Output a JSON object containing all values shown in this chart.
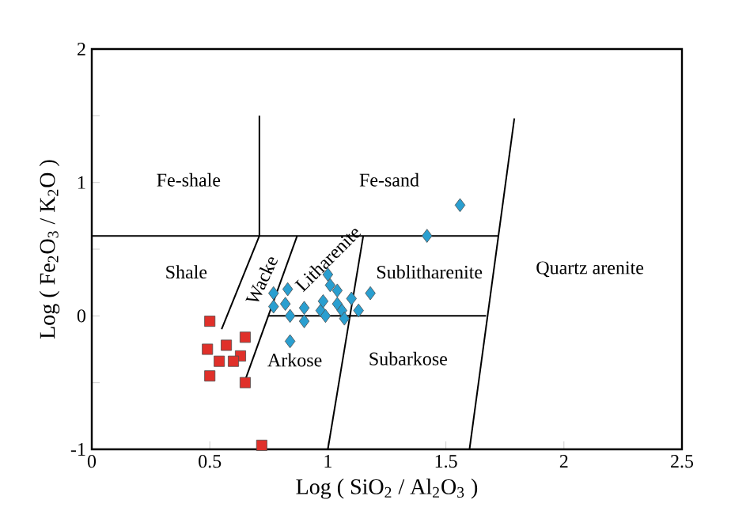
{
  "chart_data": {
    "type": "scatter",
    "xlabel": "Log ( SiO$_{2}$ / Al$_{2}$O$_{3}$ )",
    "ylabel": "Log ( Fe$_{2}$O$_{3}$ / K$_{2}$O )",
    "xlim": [
      0,
      2.5
    ],
    "ylim": [
      -1,
      2
    ],
    "xticks": [
      0,
      0.5,
      1,
      1.5,
      2,
      2.5
    ],
    "yticks": [
      -1,
      {
        "value": -0.5,
        "label": null
      },
      0,
      {
        "value": 0.5,
        "label": null
      },
      1,
      {
        "value": 1.5,
        "label": null
      },
      2
    ],
    "grid": false,
    "series": [
      {
        "type": "line",
        "color": "#000000",
        "x": [
          0.71,
          0.71,
          0.55
        ],
        "values": [
          1.5,
          0.6,
          -0.1
        ]
      },
      {
        "type": "line",
        "color": "#000000",
        "x": [
          0,
          1.72
        ],
        "values": [
          0.6,
          0.6
        ]
      },
      {
        "type": "line",
        "color": "#000000",
        "x": [
          0.87,
          0.65
        ],
        "values": [
          0.6,
          -0.48
        ]
      },
      {
        "type": "line",
        "color": "#000000",
        "x": [
          1.15,
          1.0
        ],
        "values": [
          0.6,
          -1
        ]
      },
      {
        "type": "line",
        "color": "#000000",
        "x": [
          0.75,
          1.67
        ],
        "values": [
          0,
          0
        ]
      },
      {
        "type": "line",
        "color": "#000000",
        "x": [
          1.79,
          1.6
        ],
        "values": [
          1.48,
          -1
        ]
      },
      {
        "marker": "square",
        "color": "#e0302a",
        "x": [
          0.5,
          0.49,
          0.57,
          0.65,
          0.63,
          0.54,
          0.6,
          0.5,
          0.65,
          0.72
        ],
        "values": [
          -0.04,
          -0.25,
          -0.22,
          -0.16,
          -0.3,
          -0.34,
          -0.34,
          -0.45,
          -0.5,
          -0.97
        ]
      },
      {
        "marker": "diamond",
        "color": "#2a9fd0",
        "x": [
          1.56,
          1.42,
          1.0,
          1.18,
          0.77,
          0.83,
          0.77,
          0.82,
          0.84,
          0.9,
          0.9,
          0.97,
          0.99,
          1.01,
          1.04,
          1.04,
          1.06,
          1.07,
          1.1,
          1.13,
          0.84,
          0.98
        ],
        "values": [
          0.83,
          0.6,
          0.31,
          0.17,
          0.17,
          0.2,
          0.07,
          0.09,
          0.0,
          -0.04,
          0.06,
          0.04,
          0.0,
          0.23,
          0.19,
          0.09,
          0.04,
          -0.02,
          0.13,
          0.04,
          -0.19,
          0.11
        ]
      }
    ],
    "annotations": [
      "Fe-shale",
      "Fe-sand",
      "Shale",
      "Wacke",
      "Litharenite",
      "Sublitharenite",
      "Quartz arenite",
      "Arkose",
      "Subarkose"
    ]
  }
}
